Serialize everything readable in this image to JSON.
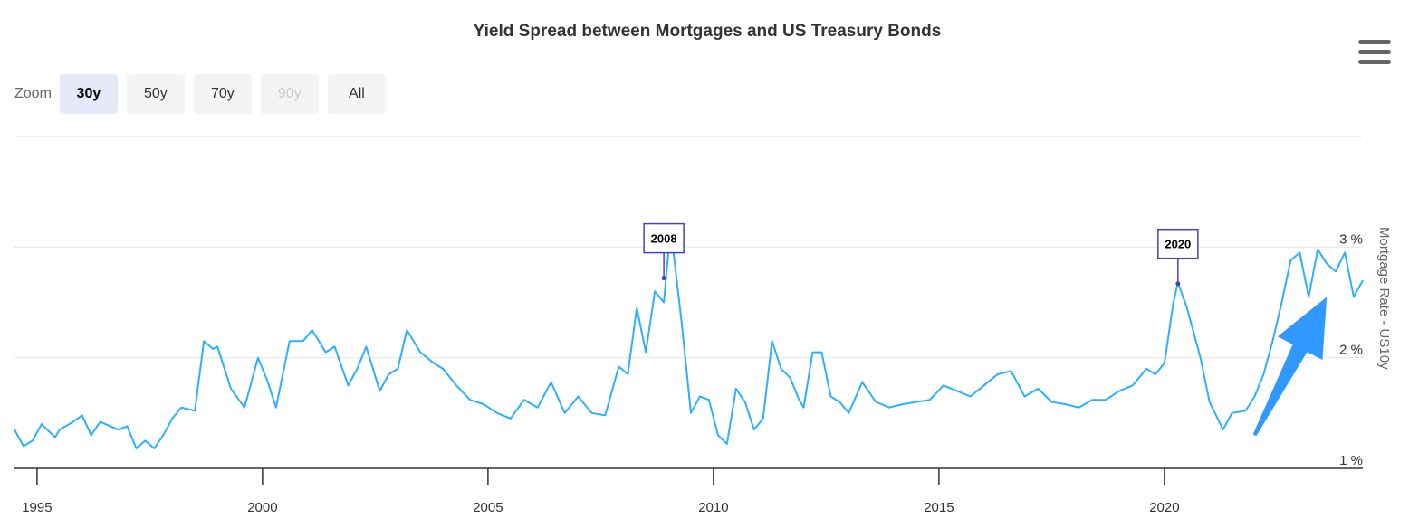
{
  "chart_data": {
    "type": "line",
    "title": "Yield Spread between Mortgages and US Treasury Bonds",
    "xlabel": "",
    "ylabel": "Mortgage Rate - US10y",
    "ylim": [
      1,
      4
    ],
    "xlim": [
      1994.5,
      2024.4
    ],
    "grid": true,
    "legend": "none",
    "y_ticks": [
      {
        "value": 1,
        "label": "1 %"
      },
      {
        "value": 2,
        "label": "2 %"
      },
      {
        "value": 3,
        "label": "3 %"
      }
    ],
    "x_ticks": [
      {
        "value": 1995,
        "label": "1995"
      },
      {
        "value": 2000,
        "label": "2000"
      },
      {
        "value": 2005,
        "label": "2005"
      },
      {
        "value": 2010,
        "label": "2010"
      },
      {
        "value": 2015,
        "label": "2015"
      },
      {
        "value": 2020,
        "label": "2020"
      }
    ],
    "series": [
      {
        "color": "#2caffe",
        "x": [
          1994.5,
          1994.7,
          1994.9,
          1995.1,
          1995.4,
          1995.5,
          1995.8,
          1996.0,
          1996.2,
          1996.4,
          1996.8,
          1997.0,
          1997.2,
          1997.4,
          1997.6,
          1997.8,
          1998.0,
          1998.2,
          1998.5,
          1998.7,
          1998.9,
          1999.0,
          1999.3,
          1999.6,
          1999.9,
          2000.1,
          2000.3,
          2000.6,
          2000.9,
          2001.1,
          2001.4,
          2001.6,
          2001.9,
          2002.1,
          2002.3,
          2002.6,
          2002.8,
          2003.0,
          2003.2,
          2003.5,
          2003.8,
          2004.0,
          2004.3,
          2004.6,
          2004.9,
          2005.2,
          2005.5,
          2005.8,
          2006.1,
          2006.4,
          2006.7,
          2007.0,
          2007.3,
          2007.6,
          2007.9,
          2008.1,
          2008.3,
          2008.5,
          2008.7,
          2008.9,
          2009.0,
          2009.1,
          2009.3,
          2009.5,
          2009.7,
          2009.9,
          2010.1,
          2010.3,
          2010.5,
          2010.7,
          2010.9,
          2011.1,
          2011.3,
          2011.5,
          2011.7,
          2011.9,
          2012.0,
          2012.2,
          2012.4,
          2012.6,
          2012.8,
          2013.0,
          2013.3,
          2013.6,
          2013.9,
          2014.2,
          2014.5,
          2014.8,
          2015.1,
          2015.4,
          2015.7,
          2016.0,
          2016.3,
          2016.6,
          2016.9,
          2017.2,
          2017.5,
          2017.8,
          2018.1,
          2018.4,
          2018.7,
          2019.0,
          2019.3,
          2019.6,
          2019.8,
          2020.0,
          2020.2,
          2020.3,
          2020.5,
          2020.8,
          2021.0,
          2021.3,
          2021.5,
          2021.8,
          2022.0,
          2022.2,
          2022.4,
          2022.6,
          2022.8,
          2023.0,
          2023.2,
          2023.4,
          2023.6,
          2023.8,
          2024.0,
          2024.2,
          2024.4
        ],
        "values": [
          1.35,
          1.2,
          1.25,
          1.4,
          1.28,
          1.35,
          1.42,
          1.48,
          1.3,
          1.42,
          1.35,
          1.38,
          1.18,
          1.25,
          1.18,
          1.3,
          1.45,
          1.55,
          1.52,
          2.15,
          2.08,
          2.1,
          1.72,
          1.55,
          2.0,
          1.8,
          1.55,
          2.15,
          2.15,
          2.25,
          2.05,
          2.1,
          1.75,
          1.9,
          2.1,
          1.7,
          1.85,
          1.9,
          2.25,
          2.05,
          1.95,
          1.9,
          1.75,
          1.62,
          1.58,
          1.5,
          1.45,
          1.62,
          1.55,
          1.78,
          1.5,
          1.65,
          1.5,
          1.48,
          1.92,
          1.85,
          2.45,
          2.05,
          2.6,
          2.5,
          2.95,
          3.0,
          2.3,
          1.5,
          1.65,
          1.62,
          1.3,
          1.22,
          1.72,
          1.6,
          1.35,
          1.45,
          2.15,
          1.9,
          1.82,
          1.62,
          1.55,
          2.05,
          2.05,
          1.65,
          1.6,
          1.5,
          1.78,
          1.6,
          1.55,
          1.58,
          1.6,
          1.62,
          1.75,
          1.7,
          1.65,
          1.75,
          1.85,
          1.88,
          1.65,
          1.72,
          1.6,
          1.58,
          1.55,
          1.62,
          1.62,
          1.7,
          1.75,
          1.9,
          1.85,
          1.95,
          2.5,
          2.68,
          2.45,
          2.0,
          1.6,
          1.35,
          1.5,
          1.52,
          1.65,
          1.85,
          2.15,
          2.5,
          2.88,
          2.95,
          2.55,
          2.98,
          2.85,
          2.78,
          2.95,
          2.55,
          2.7
        ]
      }
    ],
    "annotations": [
      {
        "label": "2008",
        "x": 2008.9,
        "y": 2.72
      },
      {
        "label": "2020",
        "x": 2020.3,
        "y": 2.67
      }
    ],
    "arrow": {
      "color": "#1e90ff",
      "from": [
        2022.0,
        1.3
      ],
      "to": [
        2023.6,
        2.55
      ]
    }
  },
  "zoom": {
    "label": "Zoom",
    "buttons": [
      {
        "label": "30y",
        "state": "selected"
      },
      {
        "label": "50y",
        "state": "normal"
      },
      {
        "label": "70y",
        "state": "normal"
      },
      {
        "label": "90y",
        "state": "disabled"
      },
      {
        "label": "All",
        "state": "normal"
      }
    ]
  },
  "menu": {
    "icon": "hamburger-menu-icon"
  }
}
